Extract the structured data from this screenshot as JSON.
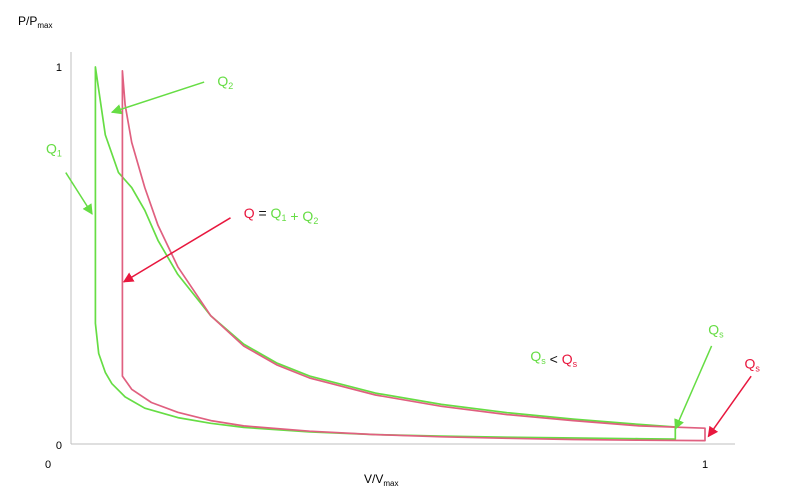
{
  "chart_data": {
    "type": "line",
    "x_axis": {
      "label": {
        "main": "V/V",
        "sub": "max"
      },
      "ticks": [
        "0",
        "1"
      ],
      "range": [
        0,
        1.05
      ]
    },
    "y_axis": {
      "label": {
        "main": "P/P",
        "sub": "max"
      },
      "ticks": [
        "0",
        "1"
      ],
      "range": [
        0,
        1.02
      ]
    },
    "grid": false,
    "colors": {
      "Q1": "#66dd44",
      "Q": "#e06080",
      "Q_red_label": "#e8173e",
      "axis": "#bfbfbf"
    },
    "series": [
      {
        "key": "Q1",
        "color": "#66dd44",
        "points": [
          [
            0.075,
            0.32
          ],
          [
            0.08,
            0.24
          ],
          [
            0.09,
            0.19
          ],
          [
            0.1,
            0.16
          ],
          [
            0.12,
            0.125
          ],
          [
            0.15,
            0.095
          ],
          [
            0.2,
            0.07
          ],
          [
            0.25,
            0.055
          ],
          [
            0.3,
            0.044
          ],
          [
            0.4,
            0.032
          ],
          [
            0.5,
            0.025
          ],
          [
            0.6,
            0.021
          ],
          [
            0.7,
            0.018
          ],
          [
            0.8,
            0.016
          ],
          [
            0.9,
            0.014
          ],
          [
            0.955,
            0.013
          ],
          [
            0.955,
            0.045
          ],
          [
            0.9,
            0.052
          ],
          [
            0.8,
            0.066
          ],
          [
            0.7,
            0.083
          ],
          [
            0.6,
            0.105
          ],
          [
            0.5,
            0.135
          ],
          [
            0.4,
            0.18
          ],
          [
            0.35,
            0.215
          ],
          [
            0.3,
            0.265
          ],
          [
            0.25,
            0.34
          ],
          [
            0.2,
            0.45
          ],
          [
            0.17,
            0.54
          ],
          [
            0.15,
            0.62
          ],
          [
            0.13,
            0.68
          ],
          [
            0.11,
            0.72
          ],
          [
            0.09,
            0.82
          ],
          [
            0.075,
            1.0
          ],
          [
            0.075,
            0.32
          ]
        ]
      },
      {
        "key": "Q",
        "color": "#e06080",
        "points": [
          [
            0.116,
            0.18
          ],
          [
            0.13,
            0.145
          ],
          [
            0.16,
            0.11
          ],
          [
            0.2,
            0.084
          ],
          [
            0.25,
            0.062
          ],
          [
            0.3,
            0.048
          ],
          [
            0.4,
            0.034
          ],
          [
            0.5,
            0.025
          ],
          [
            0.6,
            0.019
          ],
          [
            0.7,
            0.015
          ],
          [
            0.8,
            0.012
          ],
          [
            0.9,
            0.01
          ],
          [
            1.0,
            0.009
          ],
          [
            1.0,
            0.042
          ],
          [
            0.9,
            0.048
          ],
          [
            0.8,
            0.062
          ],
          [
            0.7,
            0.078
          ],
          [
            0.6,
            0.1
          ],
          [
            0.5,
            0.13
          ],
          [
            0.4,
            0.175
          ],
          [
            0.35,
            0.21
          ],
          [
            0.3,
            0.26
          ],
          [
            0.25,
            0.34
          ],
          [
            0.2,
            0.47
          ],
          [
            0.17,
            0.58
          ],
          [
            0.15,
            0.68
          ],
          [
            0.13,
            0.8
          ],
          [
            0.12,
            0.9
          ],
          [
            0.116,
            0.99
          ],
          [
            0.116,
            0.18
          ]
        ]
      }
    ],
    "annotations": [
      {
        "id": "q2",
        "parts": [
          {
            "text": "Q",
            "sub": "2",
            "color": "#66dd44"
          }
        ],
        "text_at": [
          0.26,
          0.95
        ],
        "arrow_from": [
          0.24,
          0.96
        ],
        "arrow_to": [
          0.1,
          0.88
        ],
        "arrow_color": "#66dd44"
      },
      {
        "id": "q1",
        "parts": [
          {
            "text": "Q",
            "sub": "1",
            "color": "#66dd44"
          }
        ],
        "text_at": [
          0.0,
          0.77
        ],
        "arrow_from": [
          0.03,
          0.72
        ],
        "arrow_to": [
          0.07,
          0.61
        ],
        "arrow_color": "#66dd44"
      },
      {
        "id": "qsum",
        "parts": [
          {
            "text": "Q",
            "color": "#e8173e"
          },
          {
            "text": " = ",
            "color": "#111111"
          },
          {
            "text": "Q",
            "sub": "1",
            "color": "#66dd44"
          },
          {
            "text": " + ",
            "color": "#66dd44"
          },
          {
            "text": "Q",
            "sub": "2",
            "color": "#66dd44"
          }
        ],
        "text_at": [
          0.3,
          0.6
        ],
        "arrow_from": [
          0.28,
          0.6
        ],
        "arrow_to": [
          0.118,
          0.43
        ],
        "arrow_color": "#e8173e"
      },
      {
        "id": "qs-cmp",
        "parts": [
          {
            "text": "Q",
            "sub": "s",
            "color": "#66dd44"
          },
          {
            "text": " < ",
            "color": "#111111"
          },
          {
            "text": "Q",
            "sub": "s",
            "color": "#e8173e"
          }
        ],
        "text_at": [
          0.735,
          0.22
        ],
        "arrow_from": null,
        "arrow_to": null,
        "arrow_color": null
      },
      {
        "id": "qs-green",
        "parts": [
          {
            "text": "Q",
            "sub": "s",
            "color": "#66dd44"
          }
        ],
        "text_at": [
          1.005,
          0.29
        ],
        "arrow_from": [
          1.01,
          0.26
        ],
        "arrow_to": [
          0.955,
          0.04
        ],
        "arrow_color": "#66dd44"
      },
      {
        "id": "qs-red",
        "parts": [
          {
            "text": "Q",
            "sub": "s",
            "color": "#e8173e"
          }
        ],
        "text_at": [
          1.06,
          0.2
        ],
        "arrow_from": [
          1.07,
          0.18
        ],
        "arrow_to": [
          1.005,
          0.02
        ],
        "arrow_color": "#e8173e"
      }
    ]
  }
}
